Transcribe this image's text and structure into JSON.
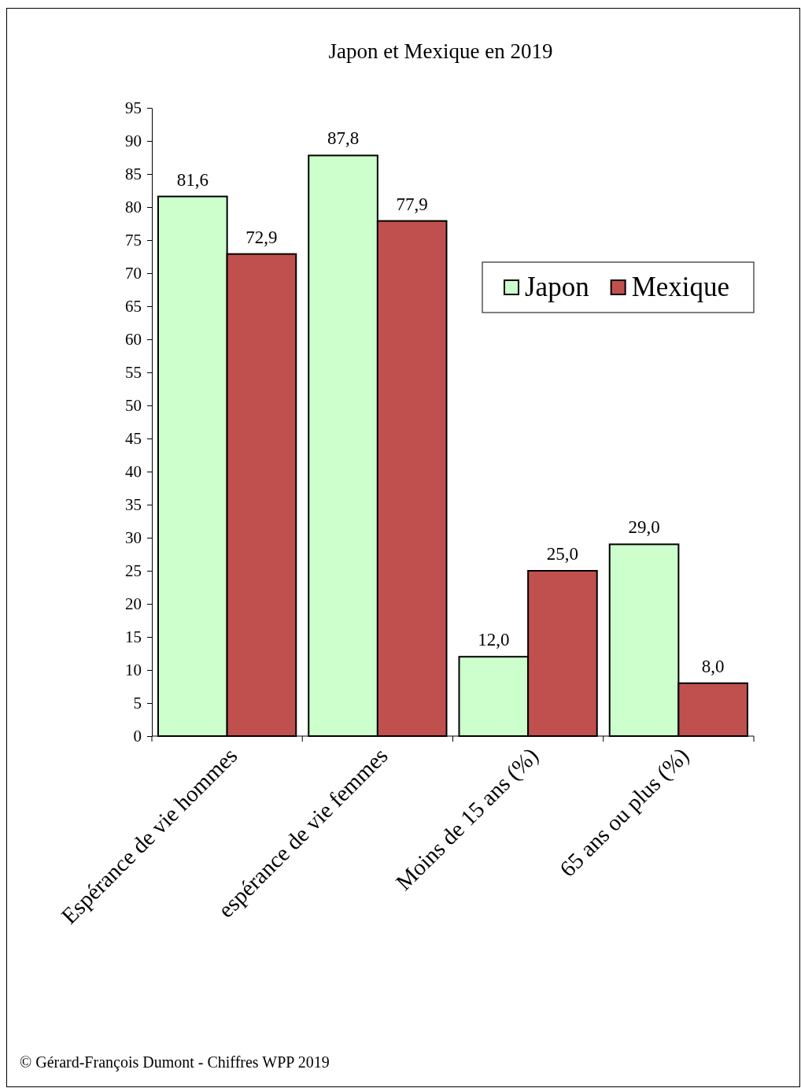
{
  "chart_data": {
    "type": "bar",
    "title": "Japon et Mexique en 2019",
    "categories": [
      "Espérance de vie hommes",
      "espérance de vie femmes",
      "Moins de 15 ans (%)",
      "65 ans ou plus  (%)"
    ],
    "series": [
      {
        "name": "Japon",
        "color": "#ccffcc",
        "values": [
          81.6,
          87.8,
          12.0,
          29.0
        ],
        "value_labels": [
          "81,6",
          "87,8",
          "12,0",
          "29,0"
        ]
      },
      {
        "name": "Mexique",
        "color": "#c0504d",
        "values": [
          72.9,
          77.9,
          25.0,
          8.0
        ],
        "value_labels": [
          "72,9",
          "77,9",
          "25,0",
          "8,0"
        ]
      }
    ],
    "ylim": [
      0,
      95
    ],
    "yticks": [
      0,
      5,
      10,
      15,
      20,
      25,
      30,
      35,
      40,
      45,
      50,
      55,
      60,
      65,
      70,
      75,
      80,
      85,
      90,
      95
    ],
    "grid": false,
    "legend": "top right",
    "annotations": [
      "© Gérard-François Dumont - Chiffres WPP 2019"
    ]
  }
}
